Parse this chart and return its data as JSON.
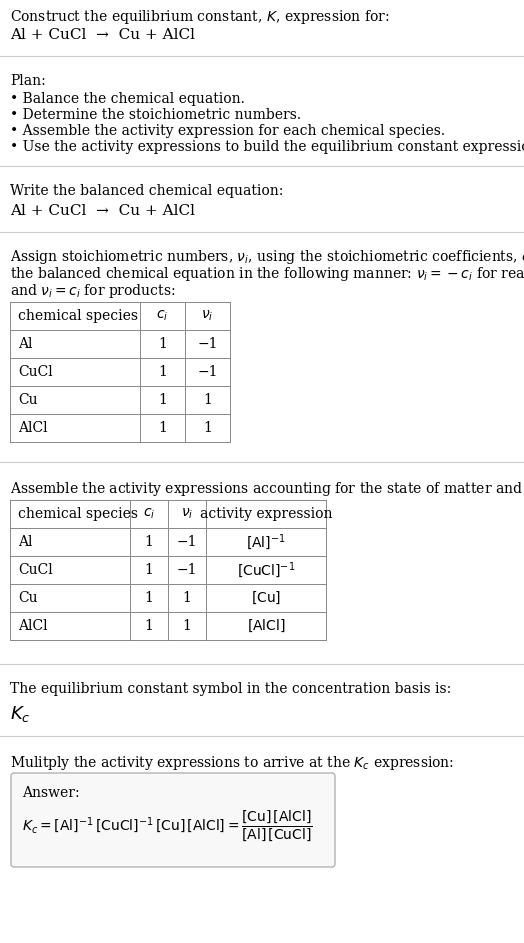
{
  "title_line1": "Construct the equilibrium constant, $K$, expression for:",
  "title_line2": "Al + CuCl  →  Cu + AlCl",
  "plan_header": "Plan:",
  "plan_bullets": [
    "• Balance the chemical equation.",
    "• Determine the stoichiometric numbers.",
    "• Assemble the activity expression for each chemical species.",
    "• Use the activity expressions to build the equilibrium constant expression."
  ],
  "balanced_eq_header": "Write the balanced chemical equation:",
  "balanced_eq": "Al + CuCl  →  Cu + AlCl",
  "stoich_intro": "Assign stoichiometric numbers, $\\nu_i$, using the stoichiometric coefficients, $c_i$, from the balanced chemical equation in the following manner: $\\nu_i = -c_i$ for reactants and $\\nu_i = c_i$ for products:",
  "table1_headers": [
    "chemical species",
    "$c_i$",
    "$\\nu_i$"
  ],
  "table1_rows": [
    [
      "Al",
      "1",
      "−1"
    ],
    [
      "CuCl",
      "1",
      "−1"
    ],
    [
      "Cu",
      "1",
      "1"
    ],
    [
      "AlCl",
      "1",
      "1"
    ]
  ],
  "activity_header": "Assemble the activity expressions accounting for the state of matter and $\\nu_i$:",
  "table2_headers": [
    "chemical species",
    "$c_i$",
    "$\\nu_i$",
    "activity expression"
  ],
  "table2_rows": [
    [
      "Al",
      "1",
      "−1",
      "$[\\mathrm{Al}]^{-1}$"
    ],
    [
      "CuCl",
      "1",
      "−1",
      "$[\\mathrm{CuCl}]^{-1}$"
    ],
    [
      "Cu",
      "1",
      "1",
      "$[\\mathrm{Cu}]$"
    ],
    [
      "AlCl",
      "1",
      "1",
      "$[\\mathrm{AlCl}]$"
    ]
  ],
  "kc_symbol_text": "The equilibrium constant symbol in the concentration basis is:",
  "kc_symbol": "$K_c$",
  "multiply_header": "Mulitply the activity expressions to arrive at the $K_c$ expression:",
  "answer_label": "Answer:",
  "bg_color": "#ffffff",
  "text_color": "#000000",
  "fig_width": 5.24,
  "fig_height": 9.43,
  "font_size": 10
}
